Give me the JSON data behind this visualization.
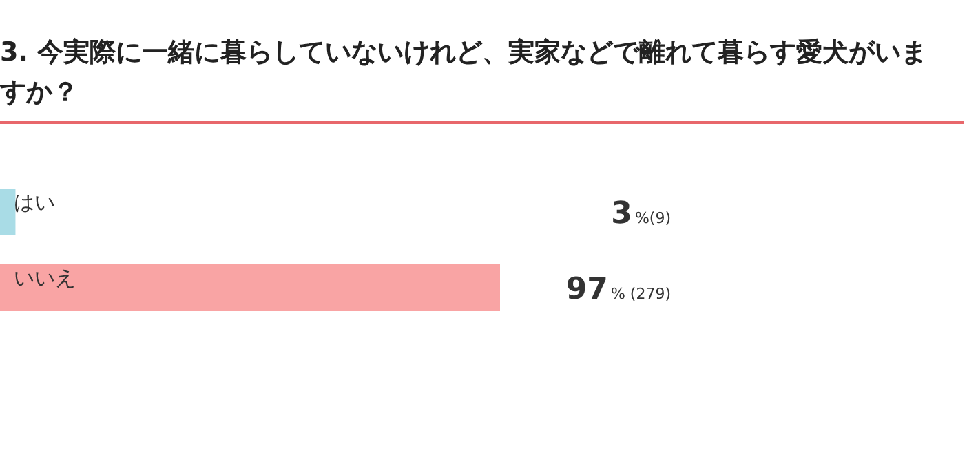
{
  "chart_data": {
    "type": "bar",
    "orientation": "horizontal",
    "title": "3. 今実際に一緒に暮らしていないけれど、実家などで離れて暮らす愛犬がいますか？",
    "categories": [
      "はい",
      "いいえ"
    ],
    "values": [
      3,
      97
    ],
    "colors": [
      "#a9dce6",
      "#f9a4a4"
    ],
    "value_labels": [
      "3%(9)",
      "97% (279)"
    ]
  }
}
